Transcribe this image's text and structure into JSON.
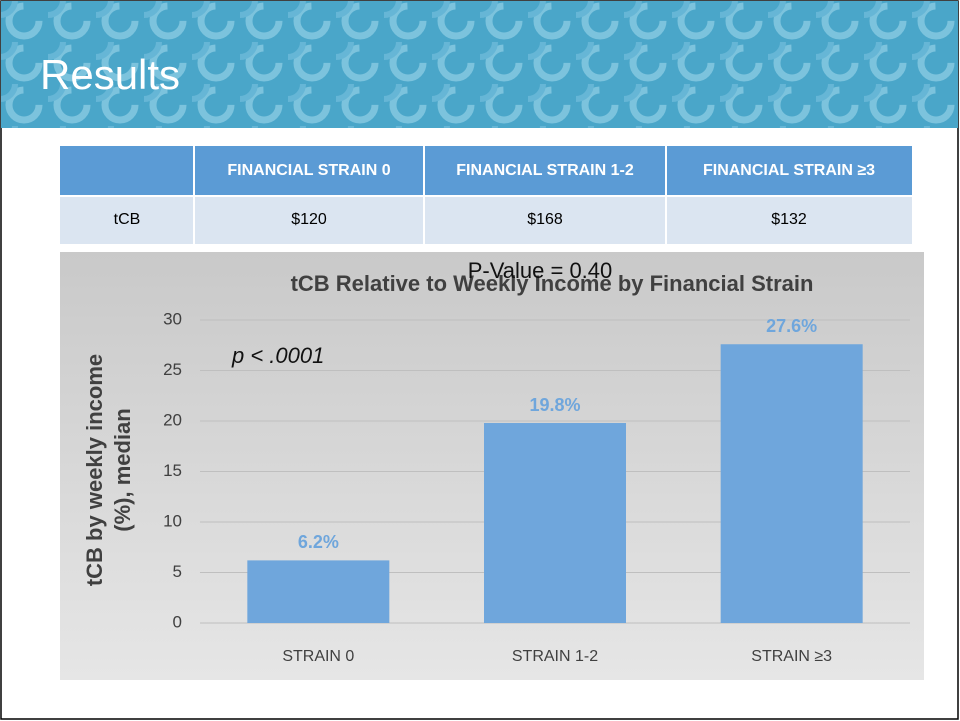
{
  "header": {
    "title": "Results"
  },
  "table": {
    "header": [
      "FINANCIAL STRAIN 0",
      "FINANCIAL STRAIN 1-2",
      "FINANCIAL STRAIN ≥3"
    ],
    "rows": [
      [
        "tCB",
        "$120",
        "$168",
        "$132"
      ]
    ]
  },
  "chart_data": {
    "type": "bar",
    "title": "tCB Relative to Weekly Income by Financial Strain",
    "annotations": [
      "P-Value = 0.40",
      "p < .0001"
    ],
    "y_label": [
      "tCB by weekly income",
      "(%), median"
    ],
    "categories": [
      "STRAIN 0",
      "STRAIN 1-2",
      "STRAIN ≥3"
    ],
    "values": [
      6.2,
      19.8,
      27.6
    ],
    "value_labels": [
      "6.2%",
      "19.8%",
      "27.6%"
    ],
    "color": "#6fa6dc",
    "ylim": [
      0,
      30
    ],
    "yticks": [
      0,
      5,
      10,
      15,
      20,
      25,
      30
    ],
    "grid": true
  }
}
